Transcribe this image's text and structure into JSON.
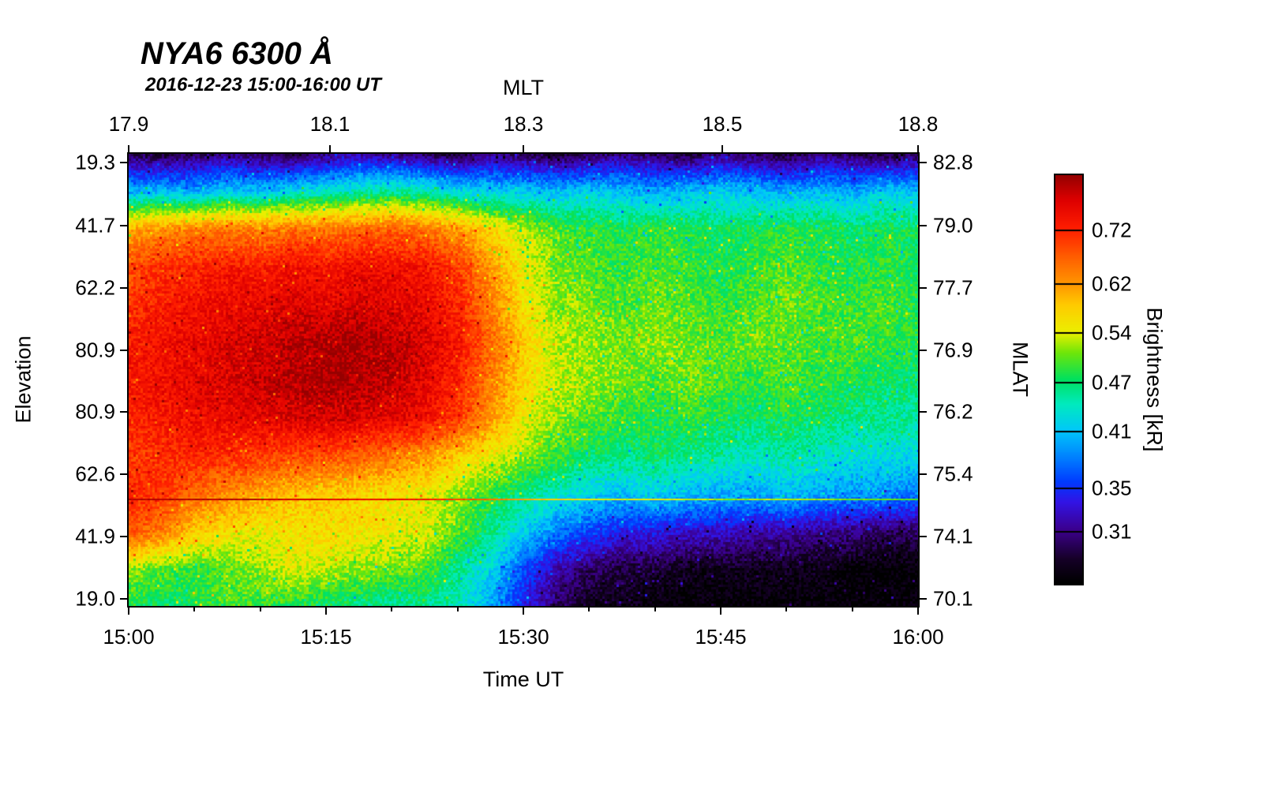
{
  "chart_data": {
    "type": "heatmap",
    "title": "NYA6 6300 Å",
    "subtitle": "2016-12-23 15:00-16:00 UT",
    "xlabel_bottom": "Time UT",
    "xlabel_top": "MLT",
    "ylabel_left": "Elevation",
    "ylabel_right": "MLAT",
    "colorbar_label": "Brightness [kR]",
    "x_ticks_bottom": [
      {
        "label": "15:00",
        "pos": 0.0
      },
      {
        "label": "15:15",
        "pos": 0.25
      },
      {
        "label": "15:30",
        "pos": 0.5
      },
      {
        "label": "15:45",
        "pos": 0.75
      },
      {
        "label": "16:00",
        "pos": 1.0
      }
    ],
    "x_ticks_top": [
      {
        "label": "17.9",
        "pos": 0.0
      },
      {
        "label": "18.1",
        "pos": 0.255
      },
      {
        "label": "18.3",
        "pos": 0.5
      },
      {
        "label": "18.5",
        "pos": 0.752
      },
      {
        "label": "18.8",
        "pos": 1.0
      }
    ],
    "y_ticks_left": [
      {
        "label": "19.3",
        "pos": 0.02
      },
      {
        "label": "41.7",
        "pos": 0.158
      },
      {
        "label": "62.2",
        "pos": 0.296
      },
      {
        "label": "80.9",
        "pos": 0.434
      },
      {
        "label": "80.9",
        "pos": 0.571
      },
      {
        "label": "62.6",
        "pos": 0.709
      },
      {
        "label": "41.9",
        "pos": 0.847
      },
      {
        "label": "19.0",
        "pos": 0.985
      }
    ],
    "y_ticks_right": [
      {
        "label": "82.8",
        "pos": 0.02
      },
      {
        "label": "79.0",
        "pos": 0.158
      },
      {
        "label": "77.7",
        "pos": 0.296
      },
      {
        "label": "76.9",
        "pos": 0.434
      },
      {
        "label": "76.2",
        "pos": 0.571
      },
      {
        "label": "75.4",
        "pos": 0.709
      },
      {
        "label": "74.1",
        "pos": 0.847
      },
      {
        "label": "70.1",
        "pos": 0.985
      }
    ],
    "colorbar_ticks": [
      {
        "label": "0.72",
        "value": 0.72
      },
      {
        "label": "0.62",
        "value": 0.62
      },
      {
        "label": "0.54",
        "value": 0.54
      },
      {
        "label": "0.47",
        "value": 0.47
      },
      {
        "label": "0.41",
        "value": 0.41
      },
      {
        "label": "0.35",
        "value": 0.35
      },
      {
        "label": "0.31",
        "value": 0.31
      }
    ],
    "scale": {
      "vmin": 0.268,
      "vmax": 0.84,
      "log": true,
      "units": "kR"
    },
    "streak": {
      "pos": 0.763,
      "boost": 1.35,
      "max": 0.82
    },
    "noise": {
      "hue_jitter": 0.045,
      "outlier_prob": 0.03,
      "outlier_mag": 0.15
    },
    "grid": {
      "cols": 25,
      "rows": 13,
      "x_range": [
        "15:00",
        "16:00"
      ],
      "values_kR": [
        [
          0.3,
          0.29,
          0.3,
          0.31,
          0.3,
          0.29,
          0.31,
          0.32,
          0.31,
          0.3,
          0.29,
          0.31,
          0.3,
          0.29,
          0.3,
          0.31,
          0.3,
          0.29,
          0.31,
          0.3,
          0.29,
          0.31,
          0.3,
          0.29,
          0.3
        ],
        [
          0.4,
          0.41,
          0.4,
          0.42,
          0.41,
          0.43,
          0.44,
          0.45,
          0.46,
          0.45,
          0.43,
          0.42,
          0.42,
          0.41,
          0.42,
          0.41,
          0.4,
          0.41,
          0.42,
          0.41,
          0.4,
          0.41,
          0.4,
          0.42,
          0.41
        ],
        [
          0.61,
          0.63,
          0.64,
          0.65,
          0.64,
          0.66,
          0.65,
          0.66,
          0.67,
          0.65,
          0.62,
          0.57,
          0.53,
          0.5,
          0.49,
          0.48,
          0.49,
          0.48,
          0.47,
          0.48,
          0.49,
          0.48,
          0.47,
          0.48,
          0.47
        ],
        [
          0.68,
          0.71,
          0.72,
          0.74,
          0.73,
          0.75,
          0.74,
          0.76,
          0.75,
          0.74,
          0.7,
          0.62,
          0.55,
          0.51,
          0.5,
          0.49,
          0.5,
          0.49,
          0.48,
          0.49,
          0.5,
          0.49,
          0.48,
          0.49,
          0.48
        ],
        [
          0.71,
          0.73,
          0.75,
          0.76,
          0.77,
          0.78,
          0.77,
          0.78,
          0.77,
          0.76,
          0.72,
          0.64,
          0.56,
          0.52,
          0.51,
          0.5,
          0.51,
          0.5,
          0.49,
          0.5,
          0.51,
          0.5,
          0.49,
          0.5,
          0.48
        ],
        [
          0.73,
          0.75,
          0.76,
          0.78,
          0.79,
          0.81,
          0.82,
          0.83,
          0.81,
          0.78,
          0.74,
          0.66,
          0.58,
          0.53,
          0.52,
          0.51,
          0.52,
          0.51,
          0.5,
          0.51,
          0.5,
          0.49,
          0.5,
          0.49,
          0.48
        ],
        [
          0.74,
          0.75,
          0.77,
          0.78,
          0.8,
          0.81,
          0.83,
          0.82,
          0.8,
          0.77,
          0.72,
          0.64,
          0.57,
          0.53,
          0.52,
          0.51,
          0.5,
          0.51,
          0.5,
          0.49,
          0.5,
          0.49,
          0.48,
          0.47,
          0.47
        ],
        [
          0.72,
          0.74,
          0.75,
          0.76,
          0.77,
          0.78,
          0.79,
          0.78,
          0.77,
          0.75,
          0.7,
          0.62,
          0.55,
          0.52,
          0.5,
          0.49,
          0.48,
          0.49,
          0.48,
          0.47,
          0.48,
          0.47,
          0.46,
          0.46,
          0.45
        ],
        [
          0.7,
          0.71,
          0.72,
          0.71,
          0.7,
          0.69,
          0.68,
          0.67,
          0.65,
          0.62,
          0.58,
          0.55,
          0.52,
          0.49,
          0.47,
          0.46,
          0.47,
          0.46,
          0.45,
          0.44,
          0.45,
          0.44,
          0.43,
          0.43,
          0.42
        ],
        [
          0.72,
          0.7,
          0.66,
          0.63,
          0.61,
          0.59,
          0.58,
          0.57,
          0.56,
          0.55,
          0.52,
          0.49,
          0.46,
          0.44,
          0.42,
          0.41,
          0.42,
          0.41,
          0.4,
          0.4,
          0.41,
          0.4,
          0.39,
          0.39,
          0.38
        ],
        [
          0.68,
          0.64,
          0.58,
          0.56,
          0.55,
          0.56,
          0.57,
          0.56,
          0.55,
          0.54,
          0.5,
          0.46,
          0.42,
          0.38,
          0.36,
          0.34,
          0.34,
          0.33,
          0.33,
          0.32,
          0.32,
          0.31,
          0.31,
          0.3,
          0.3
        ],
        [
          0.52,
          0.5,
          0.49,
          0.5,
          0.52,
          0.54,
          0.53,
          0.52,
          0.51,
          0.5,
          0.46,
          0.42,
          0.36,
          0.32,
          0.3,
          0.29,
          0.29,
          0.28,
          0.28,
          0.28,
          0.28,
          0.28,
          0.27,
          0.27,
          0.27
        ],
        [
          0.48,
          0.47,
          0.48,
          0.5,
          0.49,
          0.48,
          0.47,
          0.46,
          0.45,
          0.46,
          0.44,
          0.4,
          0.34,
          0.3,
          0.28,
          0.28,
          0.27,
          0.27,
          0.27,
          0.27,
          0.27,
          0.27,
          0.27,
          0.27,
          0.27
        ]
      ]
    },
    "colormap": [
      [
        0.0,
        0,
        0,
        0
      ],
      [
        0.06,
        22,
        0,
        40
      ],
      [
        0.13,
        60,
        0,
        140
      ],
      [
        0.2,
        50,
        20,
        230
      ],
      [
        0.25,
        0,
        60,
        255
      ],
      [
        0.31,
        0,
        130,
        255
      ],
      [
        0.375,
        0,
        200,
        250
      ],
      [
        0.44,
        0,
        235,
        190
      ],
      [
        0.5,
        0,
        225,
        95
      ],
      [
        0.565,
        110,
        230,
        10
      ],
      [
        0.615,
        235,
        240,
        0
      ],
      [
        0.68,
        255,
        205,
        0
      ],
      [
        0.735,
        255,
        150,
        0
      ],
      [
        0.8,
        255,
        95,
        0
      ],
      [
        0.87,
        255,
        30,
        0
      ],
      [
        0.94,
        222,
        0,
        0
      ],
      [
        1.0,
        150,
        0,
        0
      ]
    ]
  }
}
